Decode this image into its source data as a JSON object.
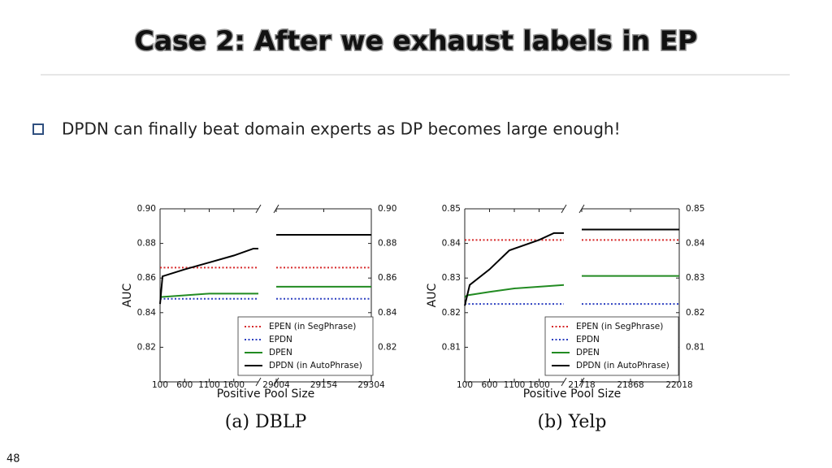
{
  "slide": {
    "title": "Case 2: After we exhaust labels in EP",
    "bullet": "DPDN can finally beat domain experts as DP becomes large enough!",
    "page_number": 48
  },
  "chart_data": [
    {
      "type": "line",
      "caption": "(a) DBLP",
      "x_label": "Positive Pool Size",
      "y_label": "AUC",
      "panels": [
        {
          "xlim": [
            100,
            2100
          ],
          "xticks": [
            100,
            600,
            1100,
            1600
          ]
        },
        {
          "xlim": [
            29004,
            29304
          ],
          "xticks": [
            29004,
            29154,
            29304
          ]
        }
      ],
      "ylim": [
        0.8,
        0.9
      ],
      "yticks": [
        0.82,
        0.84,
        0.86,
        0.88,
        {
          "value": 0.9,
          "label": "0.90"
        }
      ],
      "legend": "lower right",
      "series": [
        {
          "name": "EPEN (in SegPhrase)",
          "color": "#d62728",
          "dash": "dotted",
          "x": [
            100,
            2100,
            null,
            29004,
            29304
          ],
          "values": [
            0.866,
            0.866,
            null,
            0.866,
            0.866
          ]
        },
        {
          "name": "EPDN",
          "color": "#2c3fc0",
          "dash": "dotted",
          "x": [
            100,
            2100,
            null,
            29004,
            29304
          ],
          "values": [
            0.848,
            0.848,
            null,
            0.848,
            0.848
          ]
        },
        {
          "name": "DPEN",
          "color": "#228b22",
          "dash": "solid",
          "x": [
            100,
            600,
            1100,
            2100,
            null,
            29004,
            29304
          ],
          "values": [
            0.849,
            0.85,
            0.851,
            0.851,
            null,
            0.855,
            0.855
          ]
        },
        {
          "name": "DPDN (in AutoPhrase)",
          "color": "#000000",
          "dash": "solid",
          "x": [
            100,
            150,
            600,
            1100,
            1600,
            2000,
            2100,
            null,
            29004,
            29304
          ],
          "values": [
            0.845,
            0.861,
            0.865,
            0.869,
            0.873,
            0.877,
            0.877,
            null,
            0.885,
            0.885
          ]
        }
      ]
    },
    {
      "type": "line",
      "caption": "(b) Yelp",
      "x_label": "Positive Pool Size",
      "y_label": "AUC",
      "panels": [
        {
          "xlim": [
            100,
            2100
          ],
          "xticks": [
            100,
            600,
            1100,
            1600
          ]
        },
        {
          "xlim": [
            21718,
            22018
          ],
          "xticks": [
            21718,
            21868,
            22018
          ]
        }
      ],
      "ylim": [
        0.8,
        0.85
      ],
      "yticks": [
        0.81,
        0.82,
        0.83,
        0.84,
        0.85
      ],
      "legend": "lower right",
      "series": [
        {
          "name": "EPEN (in SegPhrase)",
          "color": "#d62728",
          "dash": "dotted",
          "x": [
            100,
            2100,
            null,
            21718,
            22018
          ],
          "values": [
            0.841,
            0.841,
            null,
            0.841,
            0.841
          ]
        },
        {
          "name": "EPDN",
          "color": "#2c3fc0",
          "dash": "dotted",
          "x": [
            100,
            2100,
            null,
            21718,
            22018
          ],
          "values": [
            0.8225,
            0.8225,
            null,
            0.8225,
            0.8225
          ]
        },
        {
          "name": "DPEN",
          "color": "#228b22",
          "dash": "solid",
          "x": [
            100,
            150,
            600,
            1100,
            2100,
            null,
            21718,
            22018
          ],
          "values": [
            0.8245,
            0.825,
            0.826,
            0.827,
            0.828,
            null,
            0.8306,
            0.8306
          ]
        },
        {
          "name": "DPDN (in AutoPhrase)",
          "color": "#000000",
          "dash": "solid",
          "x": [
            100,
            200,
            600,
            1000,
            1600,
            1900,
            2100,
            null,
            21718,
            22018
          ],
          "values": [
            0.822,
            0.828,
            0.8325,
            0.838,
            0.841,
            0.843,
            0.843,
            null,
            0.844,
            0.844
          ]
        }
      ]
    }
  ]
}
